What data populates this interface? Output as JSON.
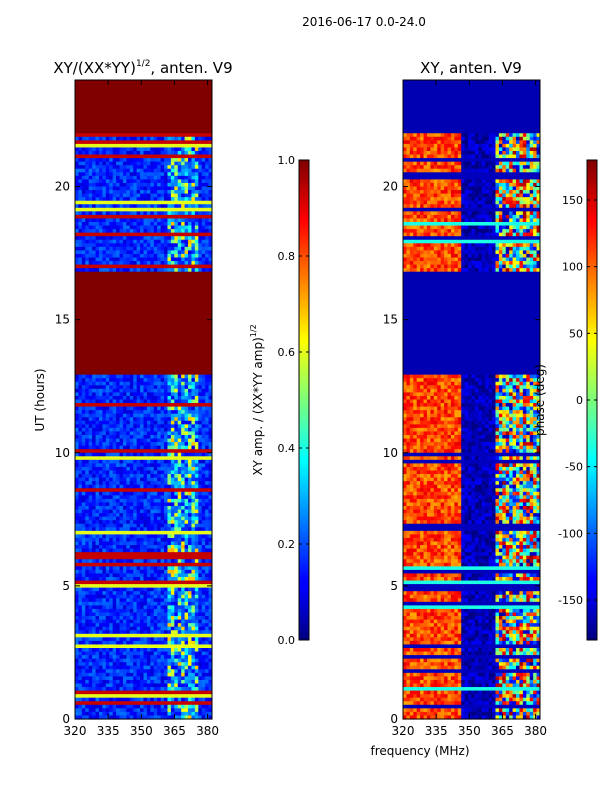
{
  "figure": {
    "suptitle": "2016-06-17 0.0-24.0",
    "shared_xlabel": "frequency (MHz)"
  },
  "chart_data": [
    {
      "type": "heatmap",
      "title": "XY/(XX*YY)",
      "title_exponent": "1/2",
      "title_suffix": ", anten. V9",
      "xlabel": "",
      "ylabel": "UT (hours)",
      "x_ticks": [
        "320",
        "335",
        "350",
        "365",
        "380"
      ],
      "x_tick_values": [
        320,
        335,
        350,
        365,
        380
      ],
      "y_ticks": [
        "0",
        "5",
        "10",
        "15",
        "20"
      ],
      "y_tick_values": [
        0,
        5,
        10,
        15,
        20
      ],
      "xlim": [
        320,
        382
      ],
      "ylim": [
        0,
        24
      ],
      "saturated_value": 1.0,
      "saturated_spans_hours": [
        [
          13.0,
          16.8
        ],
        [
          22.0,
          24.0
        ]
      ],
      "colorbar": {
        "label": "XY amp. / (XX*YY amp)",
        "label_exponent": "1/2",
        "ticks": [
          "0.0",
          "0.2",
          "0.4",
          "0.6",
          "0.8",
          "1.0"
        ],
        "tick_values": [
          0.0,
          0.2,
          0.4,
          0.6,
          0.8,
          1.0
        ],
        "range": [
          0.0,
          1.0
        ]
      }
    },
    {
      "type": "heatmap",
      "title": "XY, anten. V9",
      "xlabel": "frequency (MHz)",
      "ylabel": "",
      "x_ticks": [
        "320",
        "335",
        "350",
        "365",
        "380"
      ],
      "x_tick_values": [
        320,
        335,
        350,
        365,
        380
      ],
      "y_ticks": [
        "0",
        "5",
        "10",
        "15",
        "20"
      ],
      "y_tick_values": [
        0,
        5,
        10,
        15,
        20
      ],
      "xlim": [
        320,
        382
      ],
      "ylim": [
        0,
        24
      ],
      "flagged_spans_hours": [
        [
          13.0,
          16.8
        ],
        [
          22.0,
          24.0
        ]
      ],
      "colorbar": {
        "label": "phase (deg)",
        "ticks": [
          "-150",
          "-100",
          "-50",
          "0",
          "50",
          "100",
          "150"
        ],
        "tick_values": [
          -150,
          -100,
          -50,
          0,
          50,
          100,
          150
        ],
        "range": [
          -180,
          180
        ]
      }
    }
  ],
  "colormap": "jet"
}
